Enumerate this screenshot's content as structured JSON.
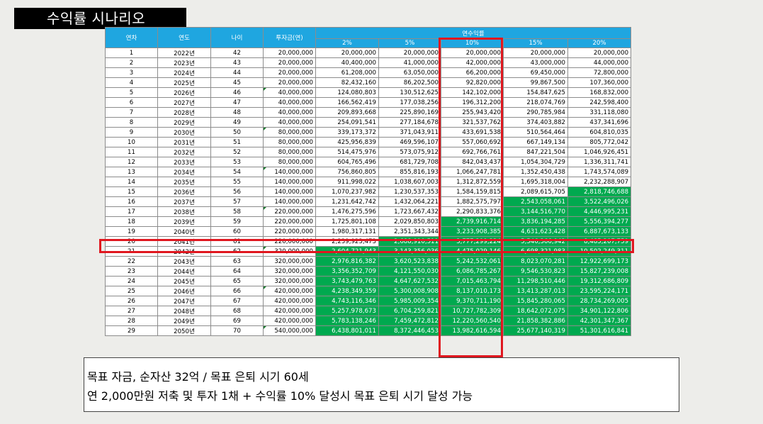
{
  "title": "수익률 시나리오",
  "table": {
    "headers": {
      "round": "연차",
      "year": "연도",
      "age": "나이",
      "investment": "투자금(연)",
      "annual_return": "연수익률",
      "rates": [
        "2%",
        "5%",
        "10%",
        "15%",
        "20%"
      ]
    },
    "highlight_color": "#00a94f",
    "header_color": "#1fa6e0",
    "marker_color": "#e0171f",
    "rows": [
      {
        "round": "1",
        "year": "2022년",
        "age": "42",
        "inv": "20,000,000",
        "v": [
          "20,000,000",
          "20,000,000",
          "20,000,000",
          "20,000,000",
          "20,000,000"
        ],
        "hl": [
          false,
          false,
          false,
          false,
          false
        ],
        "tri": false
      },
      {
        "round": "2",
        "year": "2023년",
        "age": "43",
        "inv": "20,000,000",
        "v": [
          "40,400,000",
          "41,000,000",
          "42,000,000",
          "43,000,000",
          "44,000,000"
        ],
        "hl": [
          false,
          false,
          false,
          false,
          false
        ],
        "tri": false
      },
      {
        "round": "3",
        "year": "2024년",
        "age": "44",
        "inv": "20,000,000",
        "v": [
          "61,208,000",
          "63,050,000",
          "66,200,000",
          "69,450,000",
          "72,800,000"
        ],
        "hl": [
          false,
          false,
          false,
          false,
          false
        ],
        "tri": false
      },
      {
        "round": "4",
        "year": "2025년",
        "age": "45",
        "inv": "20,000,000",
        "v": [
          "82,432,160",
          "86,202,500",
          "92,820,000",
          "99,867,500",
          "107,360,000"
        ],
        "hl": [
          false,
          false,
          false,
          false,
          false
        ],
        "tri": false
      },
      {
        "round": "5",
        "year": "2026년",
        "age": "46",
        "inv": "40,000,000",
        "v": [
          "124,080,803",
          "130,512,625",
          "142,102,000",
          "154,847,625",
          "168,832,000"
        ],
        "hl": [
          false,
          false,
          false,
          false,
          false
        ],
        "tri": true
      },
      {
        "round": "6",
        "year": "2027년",
        "age": "47",
        "inv": "40,000,000",
        "v": [
          "166,562,419",
          "177,038,256",
          "196,312,200",
          "218,074,769",
          "242,598,400"
        ],
        "hl": [
          false,
          false,
          false,
          false,
          false
        ],
        "tri": false
      },
      {
        "round": "7",
        "year": "2028년",
        "age": "48",
        "inv": "40,000,000",
        "v": [
          "209,893,668",
          "225,890,169",
          "255,943,420",
          "290,785,984",
          "331,118,080"
        ],
        "hl": [
          false,
          false,
          false,
          false,
          false
        ],
        "tri": false
      },
      {
        "round": "8",
        "year": "2029년",
        "age": "49",
        "inv": "40,000,000",
        "v": [
          "254,091,541",
          "277,184,678",
          "321,537,762",
          "374,403,882",
          "437,341,696"
        ],
        "hl": [
          false,
          false,
          false,
          false,
          false
        ],
        "tri": false
      },
      {
        "round": "9",
        "year": "2030년",
        "age": "50",
        "inv": "80,000,000",
        "v": [
          "339,173,372",
          "371,043,911",
          "433,691,538",
          "510,564,464",
          "604,810,035"
        ],
        "hl": [
          false,
          false,
          false,
          false,
          false
        ],
        "tri": true
      },
      {
        "round": "10",
        "year": "2031년",
        "age": "51",
        "inv": "80,000,000",
        "v": [
          "425,956,839",
          "469,596,107",
          "557,060,692",
          "667,149,134",
          "805,772,042"
        ],
        "hl": [
          false,
          false,
          false,
          false,
          false
        ],
        "tri": false
      },
      {
        "round": "11",
        "year": "2032년",
        "age": "52",
        "inv": "80,000,000",
        "v": [
          "514,475,976",
          "573,075,912",
          "692,766,761",
          "847,221,504",
          "1,046,926,451"
        ],
        "hl": [
          false,
          false,
          false,
          false,
          false
        ],
        "tri": false
      },
      {
        "round": "12",
        "year": "2033년",
        "age": "53",
        "inv": "80,000,000",
        "v": [
          "604,765,496",
          "681,729,708",
          "842,043,437",
          "1,054,304,729",
          "1,336,311,741"
        ],
        "hl": [
          false,
          false,
          false,
          false,
          false
        ],
        "tri": false
      },
      {
        "round": "13",
        "year": "2034년",
        "age": "54",
        "inv": "140,000,000",
        "v": [
          "756,860,805",
          "855,816,193",
          "1,066,247,781",
          "1,352,450,438",
          "1,743,574,089"
        ],
        "hl": [
          false,
          false,
          false,
          false,
          false
        ],
        "tri": true
      },
      {
        "round": "14",
        "year": "2035년",
        "age": "55",
        "inv": "140,000,000",
        "v": [
          "911,998,022",
          "1,038,607,003",
          "1,312,872,559",
          "1,695,318,004",
          "2,232,288,907"
        ],
        "hl": [
          false,
          false,
          false,
          false,
          false
        ],
        "tri": false
      },
      {
        "round": "15",
        "year": "2036년",
        "age": "56",
        "inv": "140,000,000",
        "v": [
          "1,070,237,982",
          "1,230,537,353",
          "1,584,159,815",
          "2,089,615,705",
          "2,818,746,688"
        ],
        "hl": [
          false,
          false,
          false,
          false,
          true
        ],
        "tri": false
      },
      {
        "round": "16",
        "year": "2037년",
        "age": "57",
        "inv": "140,000,000",
        "v": [
          "1,231,642,742",
          "1,432,064,221",
          "1,882,575,797",
          "2,543,058,061",
          "3,522,496,026"
        ],
        "hl": [
          false,
          false,
          false,
          true,
          true
        ],
        "tri": false
      },
      {
        "round": "17",
        "year": "2038년",
        "age": "58",
        "inv": "220,000,000",
        "v": [
          "1,476,275,596",
          "1,723,667,432",
          "2,290,833,376",
          "3,144,516,770",
          "4,446,995,231"
        ],
        "hl": [
          false,
          false,
          false,
          true,
          true
        ],
        "tri": true
      },
      {
        "round": "18",
        "year": "2039년",
        "age": "59",
        "inv": "220,000,000",
        "v": [
          "1,725,801,108",
          "2,029,850,803",
          "2,739,916,714",
          "3,836,194,285",
          "5,556,394,277"
        ],
        "hl": [
          false,
          false,
          true,
          true,
          true
        ],
        "tri": false
      },
      {
        "round": "19",
        "year": "2040년",
        "age": "60",
        "inv": "220,000,000",
        "v": [
          "1,980,317,131",
          "2,351,343,344",
          "3,233,908,385",
          "4,631,623,428",
          "6,887,673,133"
        ],
        "hl": [
          false,
          false,
          true,
          true,
          true
        ],
        "tri": false
      },
      {
        "round": "20",
        "year": "2041년",
        "age": "61",
        "inv": "220,000,000",
        "v": [
          "2,239,923,473",
          "2,688,910,511",
          "3,777,299,224",
          "5,546,366,942",
          "8,485,207,759"
        ],
        "hl": [
          false,
          true,
          true,
          true,
          true
        ],
        "tri": false
      },
      {
        "round": "21",
        "year": "2042년",
        "age": "62",
        "inv": "320,000,000",
        "v": [
          "2,604,721,943",
          "3,143,356,036",
          "4,475,029,146",
          "6,698,321,983",
          "10,502,249,311"
        ],
        "hl": [
          true,
          true,
          true,
          true,
          true
        ],
        "tri": true
      },
      {
        "round": "22",
        "year": "2043년",
        "age": "63",
        "inv": "320,000,000",
        "v": [
          "2,976,816,382",
          "3,620,523,838",
          "5,242,532,061",
          "8,023,070,281",
          "12,922,699,173"
        ],
        "hl": [
          true,
          true,
          true,
          true,
          true
        ],
        "tri": false
      },
      {
        "round": "23",
        "year": "2044년",
        "age": "64",
        "inv": "320,000,000",
        "v": [
          "3,356,352,709",
          "4,121,550,030",
          "6,086,785,267",
          "9,546,530,823",
          "15,827,239,008"
        ],
        "hl": [
          true,
          true,
          true,
          true,
          true
        ],
        "tri": false
      },
      {
        "round": "24",
        "year": "2045년",
        "age": "65",
        "inv": "320,000,000",
        "v": [
          "3,743,479,763",
          "4,647,627,532",
          "7,015,463,794",
          "11,298,510,446",
          "19,312,686,809"
        ],
        "hl": [
          true,
          true,
          true,
          true,
          true
        ],
        "tri": false
      },
      {
        "round": "25",
        "year": "2046년",
        "age": "66",
        "inv": "420,000,000",
        "v": [
          "4,238,349,359",
          "5,300,008,908",
          "8,137,010,173",
          "13,413,287,013",
          "23,595,224,171"
        ],
        "hl": [
          true,
          true,
          true,
          true,
          true
        ],
        "tri": true
      },
      {
        "round": "26",
        "year": "2047년",
        "age": "67",
        "inv": "420,000,000",
        "v": [
          "4,743,116,346",
          "5,985,009,354",
          "9,370,711,190",
          "15,845,280,065",
          "28,734,269,005"
        ],
        "hl": [
          true,
          true,
          true,
          true,
          true
        ],
        "tri": false
      },
      {
        "round": "27",
        "year": "2048년",
        "age": "68",
        "inv": "420,000,000",
        "v": [
          "5,257,978,673",
          "6,704,259,821",
          "10,727,782,309",
          "18,642,072,075",
          "34,901,122,806"
        ],
        "hl": [
          true,
          true,
          true,
          true,
          true
        ],
        "tri": false
      },
      {
        "round": "28",
        "year": "2049년",
        "age": "69",
        "inv": "420,000,000",
        "v": [
          "5,783,138,246",
          "7,459,472,812",
          "12,220,560,540",
          "21,858,382,886",
          "42,301,347,367"
        ],
        "hl": [
          true,
          true,
          true,
          true,
          true
        ],
        "tri": false
      },
      {
        "round": "29",
        "year": "2050년",
        "age": "70",
        "inv": "540,000,000",
        "v": [
          "6,438,801,011",
          "8,372,446,453",
          "13,982,616,594",
          "25,677,140,319",
          "51,301,616,841"
        ],
        "hl": [
          true,
          true,
          true,
          true,
          true
        ],
        "tri": true
      }
    ]
  },
  "notes": [
    "목표 자금, 순자산 32억 / 목표 은퇴 시기 60세",
    "연 2,000만원 저축 및 투자 1채 + 수익률 10% 달성시 목표 은퇴 시기 달성 가능"
  ]
}
